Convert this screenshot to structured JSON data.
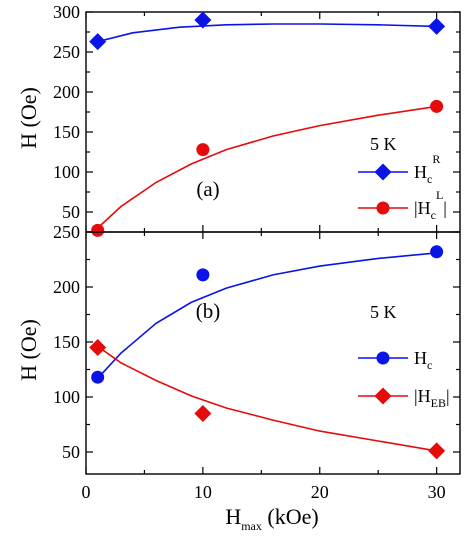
{
  "chart_data": [
    {
      "type": "scatter",
      "panel_label": "(a)",
      "annotation": "5 K",
      "ylabel": "H (Oe)",
      "ylim": [
        25,
        300
      ],
      "yticks": [
        50,
        100,
        150,
        200,
        250,
        300
      ],
      "xlim": [
        0,
        32
      ],
      "series": [
        {
          "name_main": "H",
          "name_sub": "c",
          "name_sup": "R",
          "name_prefix": "",
          "name_suffix": "",
          "marker": "diamond",
          "color": "#0a14e6",
          "x": [
            1,
            10,
            30
          ],
          "y": [
            263,
            290,
            282
          ],
          "fit": [
            [
              1,
              263
            ],
            [
              4,
              274
            ],
            [
              8,
              281
            ],
            [
              12,
              284
            ],
            [
              16,
              285
            ],
            [
              20,
              285
            ],
            [
              25,
              284
            ],
            [
              30,
              282
            ]
          ]
        },
        {
          "name_main": "H",
          "name_sub": "c",
          "name_sup": "L",
          "name_prefix": "|",
          "name_suffix": "|",
          "marker": "circle",
          "color": "#e60a0a",
          "x": [
            1,
            10,
            30
          ],
          "y": [
            27,
            128,
            182
          ],
          "fit": [
            [
              1,
              30
            ],
            [
              3,
              57
            ],
            [
              6,
              87
            ],
            [
              9,
              110
            ],
            [
              12,
              128
            ],
            [
              16,
              145
            ],
            [
              20,
              158
            ],
            [
              25,
              171
            ],
            [
              30,
              182
            ]
          ]
        }
      ]
    },
    {
      "type": "scatter",
      "panel_label": "(b)",
      "annotation": "5 K",
      "ylabel": "H (Oe)",
      "ylim": [
        30,
        250
      ],
      "yticks": [
        50,
        100,
        150,
        200,
        250
      ],
      "xlim": [
        0,
        32
      ],
      "xticks": [
        0,
        10,
        20,
        30
      ],
      "xlabel_main": "H",
      "xlabel_sub": "max",
      "xlabel_rest": " (kOe)",
      "series": [
        {
          "name_main": "H",
          "name_sub": "c",
          "name_sup": "",
          "name_prefix": "",
          "name_suffix": "",
          "marker": "circle",
          "color": "#0a14e6",
          "x": [
            1,
            10,
            30
          ],
          "y": [
            118,
            211,
            232
          ],
          "fit": [
            [
              1,
              117
            ],
            [
              3,
              140
            ],
            [
              6,
              167
            ],
            [
              9,
              186
            ],
            [
              12,
              199
            ],
            [
              16,
              211
            ],
            [
              20,
              219
            ],
            [
              25,
              226
            ],
            [
              30,
              231
            ]
          ]
        },
        {
          "name_main": "H",
          "name_sub": "EB",
          "name_sup": "",
          "name_prefix": "|",
          "name_suffix": "|",
          "marker": "diamond",
          "color": "#e60a0a",
          "x": [
            1,
            10,
            30
          ],
          "y": [
            145,
            85,
            51
          ],
          "fit": [
            [
              1,
              146
            ],
            [
              3,
              131
            ],
            [
              6,
              115
            ],
            [
              9,
              101
            ],
            [
              12,
              90
            ],
            [
              16,
              79
            ],
            [
              20,
              69
            ],
            [
              25,
              60
            ],
            [
              30,
              51
            ]
          ]
        }
      ]
    }
  ]
}
